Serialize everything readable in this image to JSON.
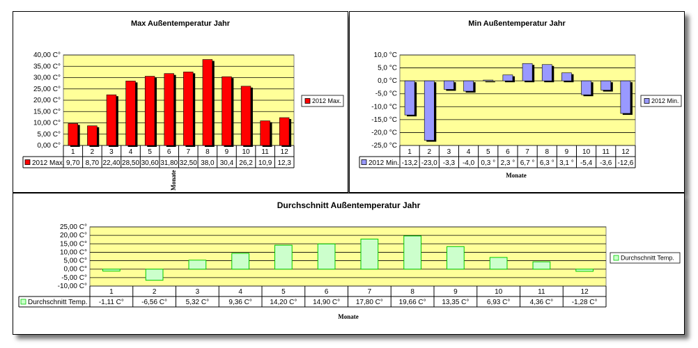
{
  "chart_data": [
    {
      "type": "bar",
      "title": "Max Außentemperatur Jahr",
      "xlabel": "Monate",
      "ylabel": "",
      "ylim": [
        0,
        40
      ],
      "ytick_labels": [
        "40,00 C°",
        "35,00 C°",
        "30,00 C°",
        "25,00 C°",
        "20,00 C°",
        "15,00 C°",
        "10,00 C°",
        "5,00 C°",
        "0,00 C°"
      ],
      "categories": [
        "1",
        "2",
        "3",
        "4",
        "5",
        "6",
        "7",
        "8",
        "9",
        "10",
        "11",
        "12"
      ],
      "series": [
        {
          "name": "2012 Max.",
          "values": [
            9.7,
            8.7,
            22.4,
            28.5,
            30.6,
            31.8,
            32.5,
            38.0,
            30.4,
            26.2,
            10.9,
            12.3
          ]
        }
      ],
      "table_row_label": "2012 Max.",
      "table_values": [
        "9,70",
        "8,70",
        "22,40",
        "28,50",
        "30,60",
        "31,80",
        "32,50",
        "38,0",
        "30,4",
        "26,2",
        "10,9",
        "12,3"
      ],
      "legend_label": "2012 Max.",
      "legend_position": "right",
      "grid": true,
      "colors": {
        "series": "#ff0000",
        "plot_bg": "#ffff99"
      }
    },
    {
      "type": "bar",
      "title": "Min  Außentemperatur Jahr",
      "xlabel": "Monate",
      "ylabel": "",
      "ylim": [
        -25,
        10
      ],
      "ytick_labels": [
        "10,0 °C",
        "5,0 °C",
        "0,0 °C",
        "-5,0 °C",
        "-10,0 °C",
        "-15,0 °C",
        "-20,0 °C",
        "-25,0 °C"
      ],
      "categories": [
        "1",
        "2",
        "3",
        "4",
        "5",
        "6",
        "7",
        "8",
        "9",
        "10",
        "11",
        "12"
      ],
      "series": [
        {
          "name": "2012 Min.",
          "values": [
            -13.2,
            -23.0,
            -3.3,
            -4.0,
            0.3,
            2.3,
            6.7,
            6.3,
            3.1,
            -5.4,
            -3.6,
            -12.6
          ]
        }
      ],
      "table_row_label": "2012 Min.",
      "table_values": [
        "-13,2",
        "-23,0",
        "-3,3",
        "-4,0",
        "0,3 °",
        "2,3 °",
        "6,7 °",
        "6,3 °",
        "3,1 °",
        "-5,4",
        "-3,6",
        "-12,6"
      ],
      "legend_label": "2012  Min.",
      "legend_position": "right",
      "grid": true,
      "colors": {
        "series": "#9999ff",
        "plot_bg": "#ffff99"
      }
    },
    {
      "type": "bar",
      "title": "Durchschnitt Außentemperatur Jahr",
      "xlabel": "Monate",
      "ylabel": "",
      "ylim": [
        -10,
        25
      ],
      "ytick_labels": [
        "25,00 C°",
        "20,00 C°",
        "15,00 C°",
        "10,00 C°",
        "5,00 C°",
        "0,00 C°",
        "-5,00 C°",
        "-10,00 C°"
      ],
      "categories": [
        "1",
        "2",
        "3",
        "4",
        "5",
        "6",
        "7",
        "8",
        "9",
        "10",
        "11",
        "12"
      ],
      "series": [
        {
          "name": "Durchschnitt Temp.",
          "values": [
            -1.11,
            -6.56,
            5.32,
            9.36,
            14.2,
            14.9,
            17.8,
            19.66,
            13.35,
            6.93,
            4.36,
            -1.28
          ]
        }
      ],
      "table_row_label": "Durchschnitt Temp.",
      "table_values": [
        "-1,11 C°",
        "-6,56 C°",
        "5,32 C°",
        "9,36 C°",
        "14,20 C°",
        "14,90 C°",
        "17,80 C°",
        "19,66 C°",
        "13,35 C°",
        "6,93 C°",
        "4,36 C°",
        "-1,28 C°"
      ],
      "legend_label": "Durchschnitt  Temp.",
      "legend_position": "right",
      "grid": true,
      "colors": {
        "series": "#ccffcc",
        "series_border": "#00cc00",
        "plot_bg": "#ffff99"
      }
    }
  ]
}
